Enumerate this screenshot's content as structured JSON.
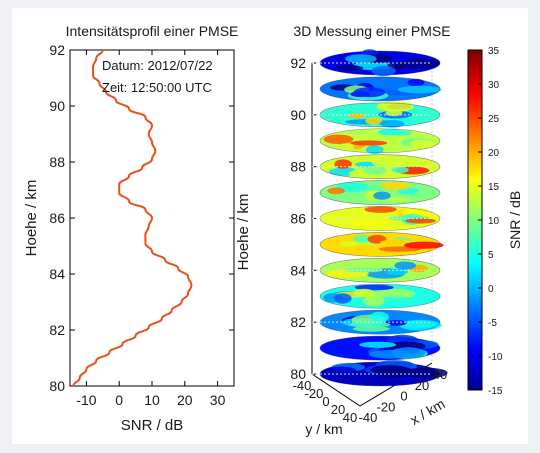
{
  "chart_data": [
    {
      "type": "line",
      "title": "Intensitätsprofil einer PMSE",
      "xlabel": "SNR / dB",
      "ylabel": "Hoehe / km",
      "xlim": [
        -15,
        35
      ],
      "ylim": [
        80,
        92
      ],
      "xticks": [
        "-10",
        "0",
        "10",
        "20",
        "30"
      ],
      "yticks": [
        "80",
        "82",
        "84",
        "86",
        "88",
        "90",
        "92"
      ],
      "annotations": [
        "Datum: 2012/07/22",
        "Zeit: 12:50:00 UTC"
      ],
      "line_color": "#e8531c",
      "series": [
        {
          "x": [
            -14,
            -12,
            -10,
            -7,
            -3,
            1,
            5,
            9,
            13,
            16,
            19,
            21,
            22,
            21,
            18,
            14,
            10,
            8,
            8,
            9,
            10,
            8,
            3,
            0,
            0,
            3,
            7,
            10,
            11,
            10,
            9,
            10,
            8,
            3,
            -1,
            -4,
            -6,
            -8,
            -8,
            -7,
            -5,
            -5,
            -6
          ],
          "y": [
            80.0,
            80.3,
            80.6,
            80.9,
            81.2,
            81.5,
            81.8,
            82.1,
            82.4,
            82.7,
            83.0,
            83.3,
            83.6,
            83.9,
            84.2,
            84.5,
            84.8,
            85.1,
            85.4,
            85.7,
            86.0,
            86.3,
            86.6,
            86.9,
            87.2,
            87.5,
            87.8,
            88.1,
            88.4,
            88.7,
            89.0,
            89.3,
            89.6,
            89.9,
            90.2,
            90.5,
            90.8,
            91.1,
            91.4,
            91.7,
            92.0,
            92.3,
            92.6
          ]
        }
      ]
    },
    {
      "type": "heatmap",
      "title": "3D Messung einer PMSE",
      "zlabel": "Hoehe / km",
      "xlabel": "x / km",
      "ylabel": "y / km",
      "colorbar_label": "SNR / dB",
      "zlim": [
        80,
        92
      ],
      "clim": [
        -15,
        35
      ],
      "zticks": [
        "80",
        "82",
        "84",
        "86",
        "88",
        "90",
        "92"
      ],
      "yticks": [
        "-40",
        "-20",
        "0",
        "20",
        "40"
      ],
      "xticks": [
        "-40",
        "-20",
        "0",
        "20",
        "40"
      ],
      "colorbar_ticks": [
        "-15",
        "-10",
        "-5",
        "0",
        "5",
        "10",
        "15",
        "20",
        "25",
        "30",
        "35"
      ],
      "slice_heights": [
        80,
        81,
        82,
        83,
        84,
        85,
        86,
        87,
        88,
        89,
        90,
        91,
        92
      ],
      "slice_mean_snr": [
        -12,
        -8,
        -2,
        5,
        12,
        18,
        15,
        10,
        14,
        13,
        6,
        -3,
        -10
      ],
      "colormap": "jet"
    }
  ]
}
